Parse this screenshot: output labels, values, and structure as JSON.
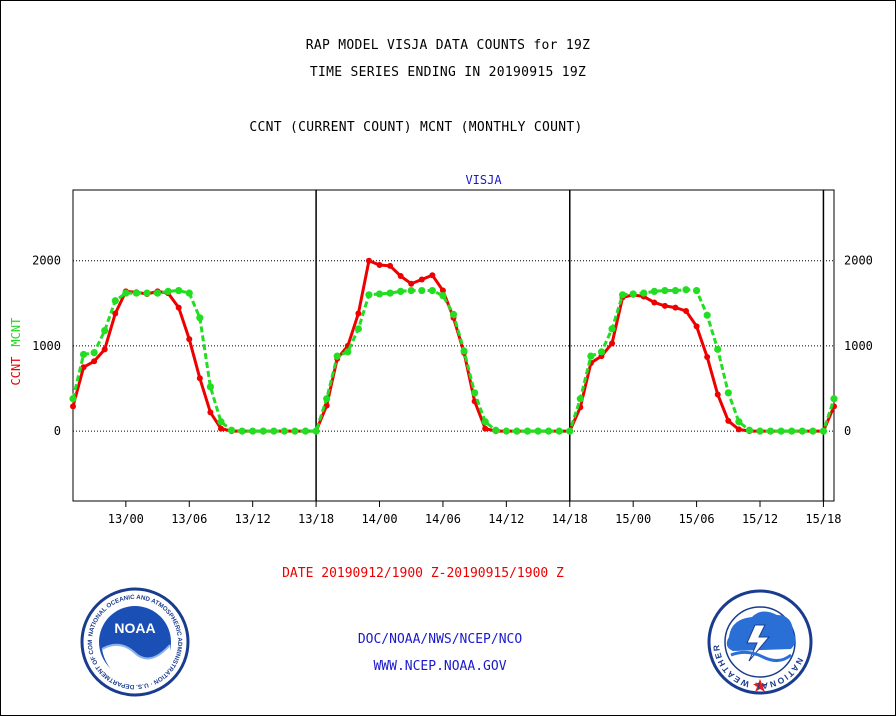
{
  "header": {
    "title_line1": "RAP MODEL VISJA DATA COUNTS for 19Z",
    "title_line2": "TIME SERIES ENDING IN 20190915 19Z",
    "title_line3": "CCNT (CURRENT COUNT) MCNT (MONTHLY COUNT)"
  },
  "footer": {
    "date_range": "DATE 20190912/1900 Z-20190915/1900 Z",
    "org": "DOC/NOAA/NWS/NCEP/NCO",
    "url": "WWW.NCEP.NOAA.GOV"
  },
  "logos": {
    "noaa_text": "NOAA",
    "noaa_ring_text": "NATIONAL OCEANIC AND ATMOSPHERIC ADMINISTRATION · U.S. DEPARTMENT OF COMMERCE",
    "nws_ring_text": "NATIONAL WEATHER SERVICE"
  },
  "chart_data": {
    "type": "line",
    "title": "VISJA",
    "ylabel_series1": "CCNT",
    "ylabel_series2": "MCNT",
    "ylim": [
      -820,
      2830
    ],
    "yticks": [
      0,
      1000,
      2000
    ],
    "ytick_labels": [
      "0",
      "1000",
      "2000"
    ],
    "xlim": [
      0,
      72
    ],
    "xticks": [
      5,
      11,
      17,
      23,
      29,
      35,
      41,
      47,
      53,
      59,
      65,
      71
    ],
    "xtick_labels": [
      "13/00",
      "13/06",
      "13/12",
      "13/18",
      "14/00",
      "14/06",
      "14/12",
      "14/18",
      "15/00",
      "15/06",
      "15/12",
      "15/18"
    ],
    "vertical_lines": [
      23,
      47,
      71
    ],
    "grid": "horizontal dotted at 0, 1000, 2000",
    "x_hours": [
      0,
      1,
      2,
      3,
      4,
      5,
      6,
      7,
      8,
      9,
      10,
      11,
      12,
      13,
      14,
      15,
      16,
      17,
      18,
      19,
      20,
      21,
      22,
      23,
      24,
      25,
      26,
      27,
      28,
      29,
      30,
      31,
      32,
      33,
      34,
      35,
      36,
      37,
      38,
      39,
      40,
      41,
      42,
      43,
      44,
      45,
      46,
      47,
      48,
      49,
      50,
      51,
      52,
      53,
      54,
      55,
      56,
      57,
      58,
      59,
      60,
      61,
      62,
      63,
      64,
      65,
      66,
      67,
      68,
      69,
      70,
      71,
      72
    ],
    "series": [
      {
        "name": "CCNT",
        "color": "#ee0000",
        "values": [
          290,
          750,
          820,
          960,
          1380,
          1640,
          1630,
          1610,
          1640,
          1620,
          1450,
          1080,
          620,
          220,
          30,
          0,
          0,
          0,
          0,
          0,
          0,
          0,
          0,
          0,
          300,
          850,
          1000,
          1380,
          2000,
          1950,
          1940,
          1820,
          1730,
          1780,
          1830,
          1650,
          1330,
          920,
          350,
          30,
          0,
          0,
          0,
          0,
          0,
          0,
          0,
          0,
          280,
          800,
          880,
          1030,
          1570,
          1600,
          1580,
          1510,
          1470,
          1450,
          1410,
          1230,
          870,
          430,
          120,
          20,
          0,
          0,
          0,
          0,
          0,
          0,
          0,
          0,
          290
        ]
      },
      {
        "name": "MCNT",
        "color": "#22dd22",
        "values": [
          380,
          900,
          920,
          1180,
          1530,
          1620,
          1620,
          1620,
          1620,
          1640,
          1650,
          1620,
          1330,
          520,
          110,
          10,
          0,
          0,
          0,
          0,
          0,
          0,
          0,
          0,
          380,
          880,
          930,
          1200,
          1600,
          1610,
          1620,
          1640,
          1650,
          1650,
          1650,
          1590,
          1370,
          940,
          450,
          110,
          10,
          0,
          0,
          0,
          0,
          0,
          0,
          0,
          380,
          880,
          930,
          1200,
          1600,
          1610,
          1620,
          1640,
          1650,
          1650,
          1660,
          1650,
          1360,
          960,
          450,
          110,
          10,
          0,
          0,
          0,
          0,
          0,
          0,
          0,
          380
        ]
      }
    ]
  }
}
